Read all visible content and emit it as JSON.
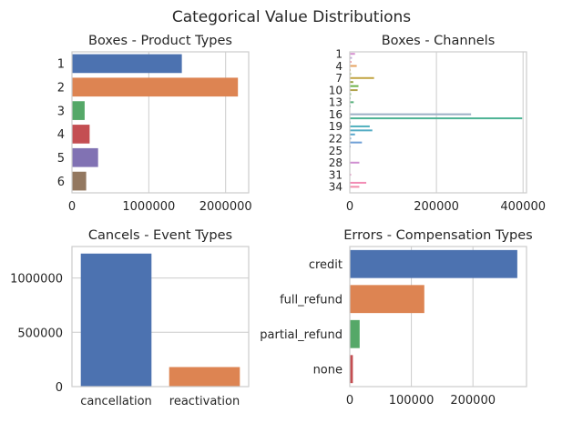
{
  "figure": {
    "title": "Categorical Value Distributions"
  },
  "chart_data": [
    {
      "type": "bar",
      "orientation": "horizontal",
      "title": "Boxes - Product Types",
      "categories": [
        "1",
        "2",
        "3",
        "4",
        "5",
        "6"
      ],
      "values": [
        1430000,
        2160000,
        165000,
        230000,
        340000,
        185000
      ],
      "colors": [
        "#4c72b0",
        "#dd8452",
        "#55a868",
        "#c44e52",
        "#8172b3",
        "#937860"
      ],
      "xlim": [
        0,
        2300000
      ],
      "xticks": [
        0,
        1000000,
        2000000
      ],
      "xtick_labels": [
        "0",
        "1000000",
        "2000000"
      ],
      "grid": true
    },
    {
      "type": "bar",
      "orientation": "horizontal",
      "title": "Boxes - Channels",
      "categories": [
        "1",
        "2",
        "3",
        "4",
        "5",
        "6",
        "7",
        "8",
        "9",
        "10",
        "11",
        "12",
        "13",
        "14",
        "15",
        "16",
        "17",
        "18",
        "19",
        "20",
        "21",
        "22",
        "23",
        "24",
        "25",
        "26",
        "27",
        "28",
        "29",
        "30",
        "31",
        "32",
        "33",
        "34",
        "35"
      ],
      "tick_labels": [
        "1",
        "4",
        "7",
        "10",
        "13",
        "16",
        "19",
        "22",
        "25",
        "28",
        "31",
        "34"
      ],
      "values": [
        12000,
        5000,
        4000,
        16000,
        2000,
        3000,
        56000,
        8000,
        20000,
        18000,
        3000,
        2000,
        9000,
        2000,
        1000,
        280000,
        398000,
        2000,
        46000,
        52000,
        12000,
        3000,
        28000,
        2000,
        1000,
        1000,
        500,
        22000,
        1000,
        500,
        3000,
        500,
        38000,
        22000,
        0
      ],
      "colors": [
        "#d68fd0",
        "#c0a6d8",
        "#ee9aa2",
        "#e6a25f",
        "#d4b24f",
        "#9fb854",
        "#c2a442",
        "#93a140",
        "#6db24a",
        "#b1a34c",
        "#73b86b",
        "#7bc08d",
        "#55b07a",
        "#5cb89a",
        "#5cb8a8",
        "#9bafc4",
        "#4db394",
        "#56b3b1",
        "#4fb0bd",
        "#53acc4",
        "#5aa7cc",
        "#62a2d3",
        "#6fa0d6",
        "#849ed9",
        "#9c99d8",
        "#b095d6",
        "#bf92d4",
        "#cf8fd1",
        "#d88ecd",
        "#e28dc9",
        "#e98cc3",
        "#ef8cbc",
        "#f28cb4",
        "#f28cac",
        "#f28ca4"
      ],
      "xlim": [
        0,
        408000
      ],
      "xticks": [
        0,
        200000,
        400000
      ],
      "xtick_labels": [
        "0",
        "200000",
        "400000"
      ],
      "grid": true
    },
    {
      "type": "bar",
      "orientation": "vertical",
      "title": "Cancels - Event Types",
      "categories": [
        "cancellation",
        "reactivation"
      ],
      "values": [
        1225000,
        180000
      ],
      "colors": [
        "#4c72b0",
        "#dd8452"
      ],
      "ylim": [
        0,
        1290000
      ],
      "yticks": [
        0,
        500000,
        1000000
      ],
      "ytick_labels": [
        "0",
        "500000",
        "1000000"
      ],
      "grid": true
    },
    {
      "type": "bar",
      "orientation": "horizontal",
      "title": "Errors - Compensation Types",
      "categories": [
        "credit",
        "full_refund",
        "partial_refund",
        "none"
      ],
      "values": [
        272000,
        121000,
        16000,
        5000
      ],
      "colors": [
        "#4c72b0",
        "#dd8452",
        "#55a868",
        "#c44e52"
      ],
      "xlim": [
        0,
        287000
      ],
      "xticks": [
        0,
        100000,
        200000
      ],
      "xtick_labels": [
        "0",
        "100000",
        "200000"
      ],
      "grid": true
    }
  ]
}
